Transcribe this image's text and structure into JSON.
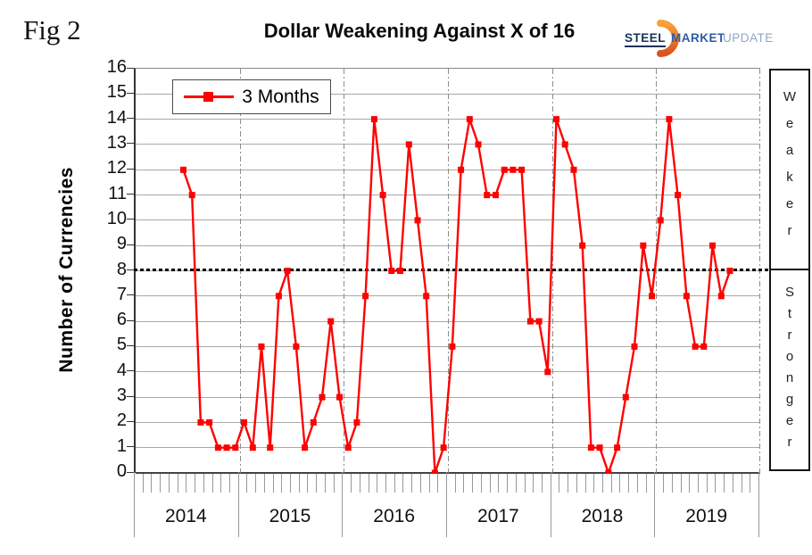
{
  "fig_label": "Fig 2",
  "title": "Dollar Weakening Against X of 16",
  "logo": {
    "steel": "STEEL",
    "market": "MARKET",
    "update": "UPDATE",
    "crescent_color_top": "#f9a13a",
    "crescent_color_bottom": "#d9531e"
  },
  "y_axis": {
    "title": "Number of Currencies",
    "min": 0,
    "max": 16,
    "step": 1
  },
  "x_axis": {
    "years": [
      "2014",
      "2015",
      "2016",
      "2017",
      "2018",
      "2019"
    ],
    "months_per_year": 12
  },
  "legend": {
    "label": "3 Months"
  },
  "zones": {
    "above": "Weaker",
    "below": "Stronger"
  },
  "chart_data": {
    "type": "line",
    "title": "Dollar Weakening Against X of 16",
    "ylabel": "Number of Currencies",
    "ylim": [
      0,
      16
    ],
    "y_tick_step": 1,
    "x_years": [
      "2014",
      "2015",
      "2016",
      "2017",
      "2018",
      "2019"
    ],
    "x_axis_span_months": 72,
    "grid": "horizontal",
    "legend_position": "top-left-inside",
    "reference_line": {
      "y": 8,
      "style": "dashed",
      "color": "#000000",
      "meaning_above": "Weaker",
      "meaning_below": "Stronger"
    },
    "series": [
      {
        "name": "3 Months",
        "color": "#fe0000",
        "marker": "square",
        "start_month": "2014-06",
        "start_month_index": 5,
        "monthly_values": [
          12,
          11,
          2,
          2,
          1,
          1,
          1,
          2,
          1,
          5,
          1,
          7,
          8,
          5,
          1,
          2,
          3,
          6,
          3,
          1,
          2,
          7,
          14,
          11,
          8,
          8,
          13,
          10,
          7,
          0,
          1,
          5,
          12,
          14,
          13,
          11,
          11,
          12,
          12,
          12,
          6,
          6,
          4,
          14,
          13,
          12,
          9,
          1,
          1,
          0,
          1,
          3,
          5,
          9,
          7,
          10,
          14,
          11,
          7,
          5,
          5,
          9,
          7,
          8
        ]
      }
    ]
  }
}
